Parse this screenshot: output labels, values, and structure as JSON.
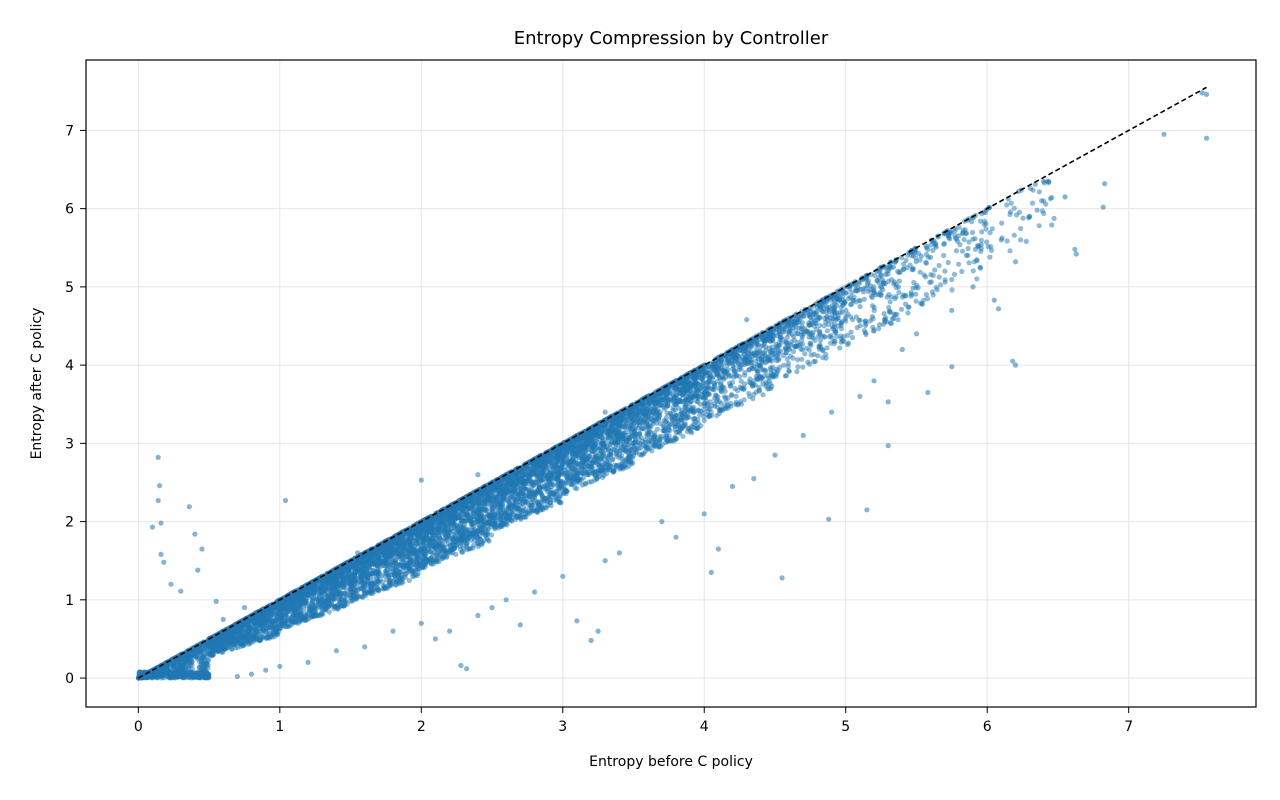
{
  "chart_data": {
    "type": "scatter",
    "title": "Entropy Compression by Controller",
    "xlabel": "Entropy before C policy",
    "ylabel": "Entropy after C policy",
    "xlim": [
      -0.37,
      7.9
    ],
    "ylim": [
      -0.37,
      7.9
    ],
    "x_ticks": [
      0,
      1,
      2,
      3,
      4,
      5,
      6,
      7
    ],
    "y_ticks": [
      0,
      1,
      2,
      3,
      4,
      5,
      6,
      7
    ],
    "grid": true,
    "legend": "none",
    "colors": {
      "points": "#1f77b4",
      "reference_line": "#000000",
      "grid": "#e6e6e6"
    },
    "reference_line": {
      "style": "dashed",
      "from": [
        0,
        0
      ],
      "to": [
        7.55,
        7.55
      ]
    },
    "series": [
      {
        "density_bands": [
          {
            "x_range": [
              0.0,
              0.5
            ],
            "count": 900,
            "y_ratio": [
              0.15,
              1.0
            ]
          },
          {
            "x_range": [
              0.5,
              1.0
            ],
            "count": 900,
            "y_ratio": [
              0.55,
              1.0
            ]
          },
          {
            "x_range": [
              1.0,
              1.5
            ],
            "count": 1000,
            "y_ratio": [
              0.62,
              1.0
            ]
          },
          {
            "x_range": [
              1.5,
              2.0
            ],
            "count": 1100,
            "y_ratio": [
              0.65,
              1.0
            ]
          },
          {
            "x_range": [
              2.0,
              2.5
            ],
            "count": 1100,
            "y_ratio": [
              0.7,
              1.0
            ]
          },
          {
            "x_range": [
              2.5,
              3.0
            ],
            "count": 1100,
            "y_ratio": [
              0.75,
              1.0
            ]
          },
          {
            "x_range": [
              3.0,
              3.5
            ],
            "count": 1000,
            "y_ratio": [
              0.78,
              1.0
            ]
          },
          {
            "x_range": [
              3.5,
              4.0
            ],
            "count": 800,
            "y_ratio": [
              0.8,
              1.0
            ]
          },
          {
            "x_range": [
              4.0,
              4.5
            ],
            "count": 550,
            "y_ratio": [
              0.82,
              1.0
            ]
          },
          {
            "x_range": [
              4.5,
              5.0
            ],
            "count": 380,
            "y_ratio": [
              0.84,
              1.0
            ]
          },
          {
            "x_range": [
              5.0,
              5.5
            ],
            "count": 220,
            "y_ratio": [
              0.85,
              1.0
            ]
          },
          {
            "x_range": [
              5.5,
              6.0
            ],
            "count": 130,
            "y_ratio": [
              0.86,
              1.0
            ]
          },
          {
            "x_range": [
              6.0,
              6.5
            ],
            "count": 50,
            "y_ratio": [
              0.88,
              1.0
            ]
          }
        ],
        "points": [
          [
            0.14,
            2.82
          ],
          [
            0.15,
            2.46
          ],
          [
            0.14,
            2.27
          ],
          [
            0.16,
            1.98
          ],
          [
            0.1,
            1.93
          ],
          [
            0.16,
            1.58
          ],
          [
            0.36,
            2.19
          ],
          [
            0.4,
            1.84
          ],
          [
            0.45,
            1.65
          ],
          [
            0.42,
            1.38
          ],
          [
            1.04,
            2.27
          ],
          [
            0.23,
            1.2
          ],
          [
            0.55,
            0.98
          ],
          [
            0.3,
            1.11
          ],
          [
            0.18,
            1.48
          ],
          [
            4.55,
            1.28
          ],
          [
            4.05,
            1.35
          ],
          [
            4.1,
            1.65
          ],
          [
            3.2,
            0.48
          ],
          [
            3.1,
            0.73
          ],
          [
            2.28,
            0.16
          ],
          [
            2.32,
            0.12
          ],
          [
            3.25,
            0.6
          ],
          [
            2.7,
            0.68
          ],
          [
            4.88,
            2.03
          ],
          [
            5.15,
            2.15
          ],
          [
            5.3,
            2.97
          ],
          [
            5.3,
            3.53
          ],
          [
            5.58,
            3.65
          ],
          [
            5.75,
            3.98
          ],
          [
            6.18,
            4.05
          ],
          [
            6.2,
            4.0
          ],
          [
            6.05,
            4.83
          ],
          [
            6.08,
            4.72
          ],
          [
            5.95,
            5.25
          ],
          [
            6.2,
            5.32
          ],
          [
            6.62,
            5.48
          ],
          [
            6.63,
            5.42
          ],
          [
            6.82,
            6.02
          ],
          [
            6.83,
            6.32
          ],
          [
            7.25,
            6.95
          ],
          [
            7.55,
            6.9
          ],
          [
            7.52,
            7.48
          ],
          [
            7.55,
            7.46
          ],
          [
            6.55,
            6.15
          ],
          [
            6.4,
            6.35
          ],
          [
            6.3,
            5.9
          ],
          [
            6.1,
            5.6
          ],
          [
            5.9,
            5.0
          ],
          [
            5.75,
            4.7
          ],
          [
            5.5,
            4.4
          ],
          [
            5.4,
            4.2
          ],
          [
            5.2,
            3.8
          ],
          [
            5.1,
            3.6
          ],
          [
            4.9,
            3.4
          ],
          [
            4.7,
            3.1
          ],
          [
            4.5,
            2.85
          ],
          [
            4.35,
            2.55
          ],
          [
            4.2,
            2.45
          ],
          [
            4.0,
            2.1
          ],
          [
            3.8,
            1.8
          ],
          [
            3.7,
            2.0
          ],
          [
            3.4,
            1.6
          ],
          [
            3.3,
            1.5
          ],
          [
            3.0,
            1.3
          ],
          [
            2.8,
            1.1
          ],
          [
            2.6,
            1.0
          ],
          [
            2.5,
            0.9
          ],
          [
            2.4,
            0.8
          ],
          [
            2.2,
            0.6
          ],
          [
            2.1,
            0.5
          ],
          [
            2.0,
            0.7
          ],
          [
            1.8,
            0.6
          ],
          [
            1.6,
            0.4
          ],
          [
            1.4,
            0.35
          ],
          [
            1.2,
            0.2
          ],
          [
            1.0,
            0.15
          ],
          [
            0.9,
            0.1
          ],
          [
            0.8,
            0.05
          ],
          [
            0.7,
            0.02
          ],
          [
            4.3,
            4.58
          ],
          [
            3.3,
            3.4
          ],
          [
            2.4,
            2.6
          ],
          [
            2.0,
            2.53
          ],
          [
            1.7,
            1.7
          ],
          [
            1.55,
            1.6
          ],
          [
            0.75,
            0.9
          ],
          [
            0.6,
            0.75
          ]
        ]
      }
    ]
  }
}
